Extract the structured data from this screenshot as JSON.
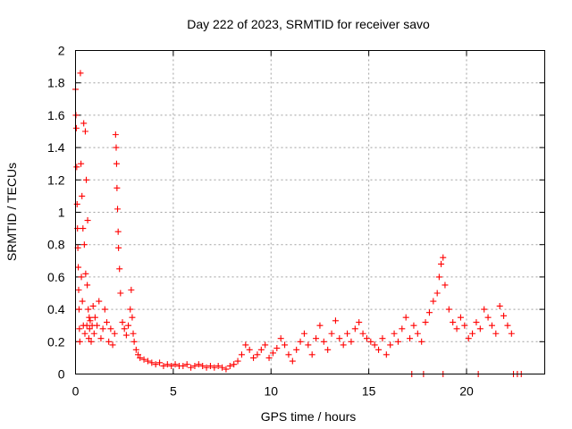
{
  "chart_data": {
    "type": "scatter",
    "title": "Day 222 of 2023, SRMTID for receiver savo",
    "xlabel": "GPS time / hours",
    "ylabel": "SRMTID / TECUs",
    "xlim": [
      0,
      24
    ],
    "ylim": [
      0,
      2
    ],
    "x_ticks": [
      0,
      5,
      10,
      15,
      20
    ],
    "x_tick_labels": [
      "0",
      "5",
      "10",
      "15",
      "20"
    ],
    "y_ticks": [
      0,
      0.2,
      0.4,
      0.6,
      0.8,
      1,
      1.2,
      1.4,
      1.6,
      1.8,
      2
    ],
    "y_tick_labels": [
      "0",
      "0.2",
      "0.4",
      "0.6",
      "0.8",
      "1",
      "1.2",
      "1.4",
      "1.6",
      "1.8",
      "2"
    ],
    "grid": true,
    "marker": "+",
    "color": "#ff0000",
    "series": [
      {
        "name": "SRMTID",
        "x": [
          0.0,
          0.02,
          0.04,
          0.06,
          0.08,
          0.1,
          0.12,
          0.14,
          0.16,
          0.18,
          0.2,
          0.22,
          0.25,
          0.28,
          0.3,
          0.33,
          0.35,
          0.38,
          0.4,
          0.42,
          0.45,
          0.48,
          0.5,
          0.52,
          0.55,
          0.58,
          0.6,
          0.62,
          0.65,
          0.68,
          0.7,
          0.72,
          0.75,
          0.8,
          0.85,
          0.9,
          0.95,
          1.0,
          1.1,
          1.2,
          1.3,
          1.4,
          1.5,
          1.6,
          1.7,
          1.8,
          1.9,
          2.0,
          2.05,
          2.08,
          2.1,
          2.12,
          2.15,
          2.18,
          2.2,
          2.25,
          2.3,
          2.4,
          2.5,
          2.6,
          2.7,
          2.8,
          2.85,
          2.9,
          2.95,
          3.0,
          3.1,
          3.2,
          3.3,
          3.5,
          3.7,
          3.9,
          4.1,
          4.3,
          4.5,
          4.7,
          4.9,
          5.1,
          5.3,
          5.5,
          5.7,
          5.9,
          6.1,
          6.3,
          6.5,
          6.7,
          6.9,
          7.1,
          7.3,
          7.5,
          7.7,
          7.9,
          8.1,
          8.3,
          8.5,
          8.7,
          8.9,
          9.1,
          9.3,
          9.5,
          9.7,
          9.9,
          10.1,
          10.3,
          10.5,
          10.7,
          10.9,
          11.1,
          11.3,
          11.5,
          11.7,
          11.9,
          12.1,
          12.3,
          12.5,
          12.7,
          12.9,
          13.1,
          13.3,
          13.5,
          13.7,
          13.9,
          14.1,
          14.3,
          14.5,
          14.7,
          14.9,
          15.1,
          15.3,
          15.5,
          15.7,
          15.9,
          16.1,
          16.3,
          16.5,
          16.7,
          16.9,
          17.1,
          17.3,
          17.5,
          17.7,
          17.9,
          18.1,
          18.3,
          18.5,
          18.6,
          18.7,
          18.8,
          18.9,
          19.1,
          19.3,
          19.5,
          19.7,
          19.9,
          20.1,
          20.3,
          20.5,
          20.7,
          20.9,
          21.1,
          21.3,
          21.5,
          21.7,
          21.9,
          22.1,
          22.3,
          17.2,
          17.8,
          18.8,
          20.6,
          22.4,
          22.6,
          22.8
        ],
        "y": [
          1.76,
          1.6,
          1.52,
          1.28,
          1.05,
          0.9,
          0.78,
          0.66,
          0.52,
          0.4,
          0.28,
          0.2,
          1.86,
          1.3,
          0.6,
          1.1,
          0.45,
          0.9,
          0.3,
          1.55,
          0.8,
          0.25,
          1.5,
          0.62,
          1.2,
          0.3,
          0.55,
          0.95,
          0.4,
          0.22,
          0.35,
          0.28,
          0.33,
          0.2,
          0.3,
          0.42,
          0.25,
          0.35,
          0.3,
          0.45,
          0.22,
          0.28,
          0.4,
          0.32,
          0.2,
          0.28,
          0.18,
          0.25,
          1.48,
          1.4,
          1.3,
          1.15,
          1.02,
          0.88,
          0.78,
          0.65,
          0.5,
          0.32,
          0.28,
          0.24,
          0.3,
          0.4,
          0.52,
          0.35,
          0.25,
          0.2,
          0.15,
          0.12,
          0.1,
          0.09,
          0.08,
          0.07,
          0.06,
          0.07,
          0.05,
          0.06,
          0.05,
          0.06,
          0.05,
          0.05,
          0.06,
          0.04,
          0.05,
          0.06,
          0.05,
          0.04,
          0.05,
          0.04,
          0.05,
          0.04,
          0.03,
          0.05,
          0.06,
          0.08,
          0.12,
          0.18,
          0.15,
          0.1,
          0.12,
          0.15,
          0.18,
          0.1,
          0.13,
          0.16,
          0.22,
          0.18,
          0.12,
          0.08,
          0.15,
          0.2,
          0.25,
          0.18,
          0.12,
          0.22,
          0.3,
          0.2,
          0.15,
          0.25,
          0.33,
          0.22,
          0.18,
          0.25,
          0.2,
          0.28,
          0.32,
          0.25,
          0.22,
          0.2,
          0.18,
          0.15,
          0.22,
          0.12,
          0.18,
          0.25,
          0.2,
          0.28,
          0.35,
          0.22,
          0.3,
          0.25,
          0.2,
          0.32,
          0.38,
          0.45,
          0.5,
          0.6,
          0.68,
          0.72,
          0.55,
          0.4,
          0.32,
          0.28,
          0.35,
          0.3,
          0.22,
          0.25,
          0.32,
          0.28,
          0.4,
          0.35,
          0.3,
          0.25,
          0.42,
          0.36,
          0.3,
          0.25,
          0.0,
          0.0,
          0.0,
          0.0,
          0.0,
          0.0,
          0.0
        ]
      }
    ]
  }
}
